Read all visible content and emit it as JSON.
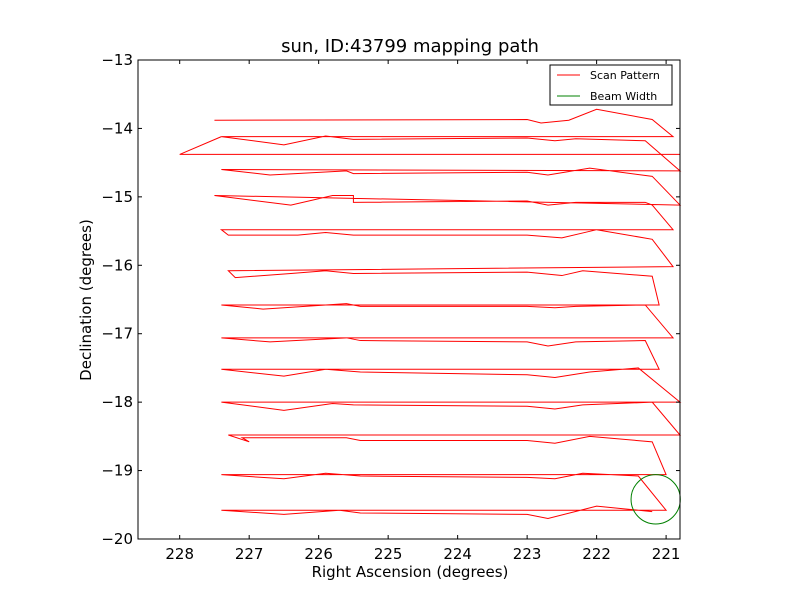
{
  "chart_data": {
    "type": "line",
    "title": "sun, ID:43799 mapping path",
    "xlabel": "Right Ascension (degrees)",
    "ylabel": "Declination (degrees)",
    "xlim": [
      228.6,
      220.8
    ],
    "ylim": [
      -20,
      -13
    ],
    "x_reversed": true,
    "xticks": [
      228,
      227,
      226,
      225,
      224,
      223,
      222,
      221
    ],
    "yticks": [
      -13,
      -14,
      -15,
      -16,
      -17,
      -18,
      -19,
      -20
    ],
    "xtick_labels": [
      "228",
      "227",
      "226",
      "225",
      "224",
      "223",
      "222",
      "221"
    ],
    "ytick_labels": [
      "−13",
      "−14",
      "−15",
      "−16",
      "−17",
      "−18",
      "−19",
      "−20"
    ],
    "grid": false,
    "legend": {
      "position": "upper right",
      "entries": [
        {
          "label": "Scan Pattern",
          "color": "#ff0000"
        },
        {
          "label": "Beam Width",
          "color": "#008000"
        }
      ]
    },
    "series": [
      {
        "name": "Scan Pattern",
        "color": "#ff0000",
        "x": [
          227.5,
          223.0,
          222.8,
          222.4,
          222.0,
          221.2,
          220.9,
          227.4,
          226.5,
          225.9,
          225.5,
          223.0,
          222.6,
          222.3,
          221.3,
          220.8,
          227.4,
          226.7,
          225.6,
          225.5,
          223.0,
          222.7,
          222.1,
          221.2,
          220.8,
          227.5,
          226.4,
          225.8,
          225.5,
          225.5,
          223.0,
          222.7,
          222.3,
          221.3,
          221.2,
          220.9,
          227.4,
          227.3,
          226.3,
          225.9,
          225.5,
          223.0,
          222.5,
          222.0,
          221.2,
          220.9,
          227.3,
          227.2,
          226.4,
          225.9,
          225.5,
          223.0,
          222.5,
          222.2,
          221.2,
          221.1,
          227.4,
          226.8,
          225.6,
          225.4,
          223.0,
          222.6,
          222.3,
          221.3,
          220.9,
          227.4,
          226.7,
          225.6,
          225.4,
          223.0,
          222.7,
          222.3,
          221.3,
          221.1,
          227.4,
          226.5,
          225.9,
          225.4,
          223.0,
          222.6,
          222.1,
          221.4,
          220.8,
          227.4,
          226.5,
          225.8,
          225.5,
          223.0,
          222.6,
          222.2,
          221.2,
          220.8,
          227.3,
          227.0,
          227.1,
          225.6,
          225.4,
          223.0,
          222.6,
          222.1,
          221.2,
          221.0,
          227.4,
          226.5,
          225.9,
          225.4,
          223.0,
          222.6,
          222.2,
          221.4,
          221.0,
          227.4,
          226.5,
          225.7,
          225.4,
          223.0,
          222.7,
          222.0,
          221.2
        ],
        "y": [
          -13.88,
          -13.87,
          -13.92,
          -13.88,
          -13.72,
          -13.87,
          -14.12,
          -14.12,
          -14.24,
          -14.11,
          -14.16,
          -14.14,
          -14.18,
          -14.15,
          -14.18,
          -14.62,
          -14.6,
          -14.68,
          -14.62,
          -14.66,
          -14.64,
          -14.68,
          -14.58,
          -14.7,
          -15.12,
          -14.98,
          -15.12,
          -14.98,
          -14.98,
          -15.08,
          -15.06,
          -15.12,
          -15.08,
          -15.08,
          -15.12,
          -15.48,
          -15.48,
          -15.56,
          -15.56,
          -15.52,
          -15.56,
          -15.56,
          -15.6,
          -15.48,
          -15.62,
          -16.02,
          -16.08,
          -16.18,
          -16.12,
          -16.08,
          -16.12,
          -16.1,
          -16.15,
          -16.08,
          -16.16,
          -16.58,
          -16.58,
          -16.64,
          -16.56,
          -16.6,
          -16.6,
          -16.62,
          -16.6,
          -16.58,
          -17.06,
          -17.06,
          -17.12,
          -17.06,
          -17.1,
          -17.12,
          -17.18,
          -17.12,
          -17.1,
          -17.52,
          -17.52,
          -17.62,
          -17.52,
          -17.56,
          -17.6,
          -17.64,
          -17.56,
          -17.5,
          -18.0,
          -18.0,
          -18.12,
          -18.02,
          -18.04,
          -18.06,
          -18.1,
          -18.04,
          -18.0,
          -18.48,
          -18.48,
          -18.58,
          -18.52,
          -18.52,
          -18.56,
          -18.56,
          -18.6,
          -18.5,
          -18.58,
          -19.06,
          -19.06,
          -19.12,
          -19.04,
          -19.08,
          -19.1,
          -19.12,
          -19.04,
          -19.08,
          -19.58,
          -19.58,
          -19.64,
          -19.58,
          -19.62,
          -19.64,
          -19.7,
          -19.52,
          -19.6
        ]
      }
    ],
    "extra_segments": [
      {
        "x": [
          228.0,
          220.8,
          220.8,
          228.0,
          228.0,
          227.4
        ],
        "y": [
          -14.38,
          -14.38,
          -14.38,
          -14.38,
          -14.38,
          -14.12
        ]
      }
    ],
    "beam": {
      "center_ra": 221.15,
      "center_dec": -19.42,
      "diameter_deg": 0.72,
      "color": "#008000"
    }
  }
}
